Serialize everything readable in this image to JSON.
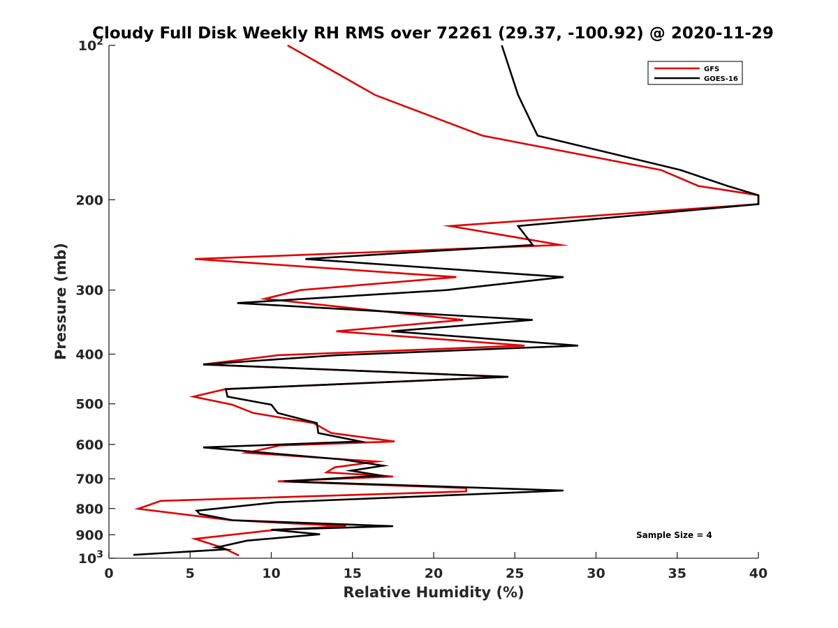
{
  "chart_data": {
    "type": "line",
    "title": "Cloudy Full Disk Weekly RH RMS over 72261 (29.37, -100.92) @ 2020-11-29",
    "xlabel": "Relative Humidity (%)",
    "ylabel": "Pressure (mb)",
    "xlim": [
      0,
      40
    ],
    "ylim": [
      100,
      1000
    ],
    "y_scale": "log",
    "y_reversed": true,
    "x_ticks": [
      "0",
      "5",
      "10",
      "15",
      "20",
      "25",
      "30",
      "35",
      "40"
    ],
    "y_ticks": [
      {
        "value": 100,
        "label": "10",
        "sup": "2"
      },
      {
        "value": 200,
        "label": "200",
        "sup": ""
      },
      {
        "value": 300,
        "label": "300",
        "sup": ""
      },
      {
        "value": 400,
        "label": "400",
        "sup": ""
      },
      {
        "value": 500,
        "label": "500",
        "sup": ""
      },
      {
        "value": 600,
        "label": "600",
        "sup": ""
      },
      {
        "value": 700,
        "label": "700",
        "sup": ""
      },
      {
        "value": 800,
        "label": "800",
        "sup": ""
      },
      {
        "value": 900,
        "label": "900",
        "sup": ""
      },
      {
        "value": 1000,
        "label": "10",
        "sup": "3"
      }
    ],
    "legend": {
      "position": "top-right"
    },
    "annotation": "Sample Size = 4",
    "series": [
      {
        "name": "GFS",
        "color": "#e00000",
        "points": [
          [
            11.0,
            100
          ],
          [
            16.4,
            125
          ],
          [
            23.0,
            150
          ],
          [
            34.0,
            175
          ],
          [
            36.3,
            188
          ],
          [
            40.0,
            196
          ],
          [
            40.0,
            204
          ],
          [
            21.0,
            225
          ],
          [
            27.8,
            245
          ],
          [
            5.3,
            261
          ],
          [
            21.4,
            283
          ],
          [
            11.8,
            300
          ],
          [
            9.6,
            312
          ],
          [
            21.8,
            343
          ],
          [
            14.0,
            361
          ],
          [
            25.6,
            385
          ],
          [
            10.4,
            402
          ],
          [
            5.8,
            419
          ],
          [
            24.5,
            443
          ],
          [
            7.2,
            468
          ],
          [
            5.2,
            484
          ],
          [
            7.6,
            502
          ],
          [
            8.9,
            521
          ],
          [
            12.6,
            545
          ],
          [
            13.7,
            570
          ],
          [
            17.6,
            592
          ],
          [
            10.5,
            603
          ],
          [
            8.5,
            623
          ],
          [
            16.5,
            648
          ],
          [
            13.9,
            665
          ],
          [
            13.4,
            680
          ],
          [
            17.5,
            693
          ],
          [
            10.4,
            708
          ],
          [
            22.0,
            730
          ],
          [
            22.0,
            741
          ],
          [
            3.2,
            773
          ],
          [
            1.8,
            801
          ],
          [
            7.5,
            843
          ],
          [
            14.6,
            866
          ],
          [
            10.3,
            880
          ],
          [
            5.3,
            917
          ],
          [
            7.0,
            954
          ],
          [
            8.0,
            988
          ]
        ]
      },
      {
        "name": "GOES-16",
        "color": "#000000",
        "points": [
          [
            24.2,
            100
          ],
          [
            25.2,
            125
          ],
          [
            26.4,
            150
          ],
          [
            35.2,
            175
          ],
          [
            38.1,
            188
          ],
          [
            40.0,
            196
          ],
          [
            40.0,
            204
          ],
          [
            25.2,
            225
          ],
          [
            26.1,
            245
          ],
          [
            12.1,
            261
          ],
          [
            28.0,
            283
          ],
          [
            20.8,
            300
          ],
          [
            7.9,
            318
          ],
          [
            26.1,
            343
          ],
          [
            17.4,
            361
          ],
          [
            28.9,
            385
          ],
          [
            14.0,
            402
          ],
          [
            5.8,
            419
          ],
          [
            24.6,
            443
          ],
          [
            7.2,
            468
          ],
          [
            7.3,
            484
          ],
          [
            10.0,
            502
          ],
          [
            10.4,
            521
          ],
          [
            12.8,
            545
          ],
          [
            12.9,
            570
          ],
          [
            15.5,
            592
          ],
          [
            5.8,
            608
          ],
          [
            14.4,
            642
          ],
          [
            16.9,
            660
          ],
          [
            14.9,
            675
          ],
          [
            16.8,
            690
          ],
          [
            10.8,
            708
          ],
          [
            28.0,
            738
          ],
          [
            10.3,
            778
          ],
          [
            5.4,
            808
          ],
          [
            5.6,
            820
          ],
          [
            7.6,
            843
          ],
          [
            17.5,
            866
          ],
          [
            10.0,
            880
          ],
          [
            13.0,
            898
          ],
          [
            8.5,
            924
          ],
          [
            7.2,
            944
          ],
          [
            6.6,
            953
          ],
          [
            7.2,
            961
          ],
          [
            1.5,
            985
          ]
        ]
      }
    ]
  }
}
